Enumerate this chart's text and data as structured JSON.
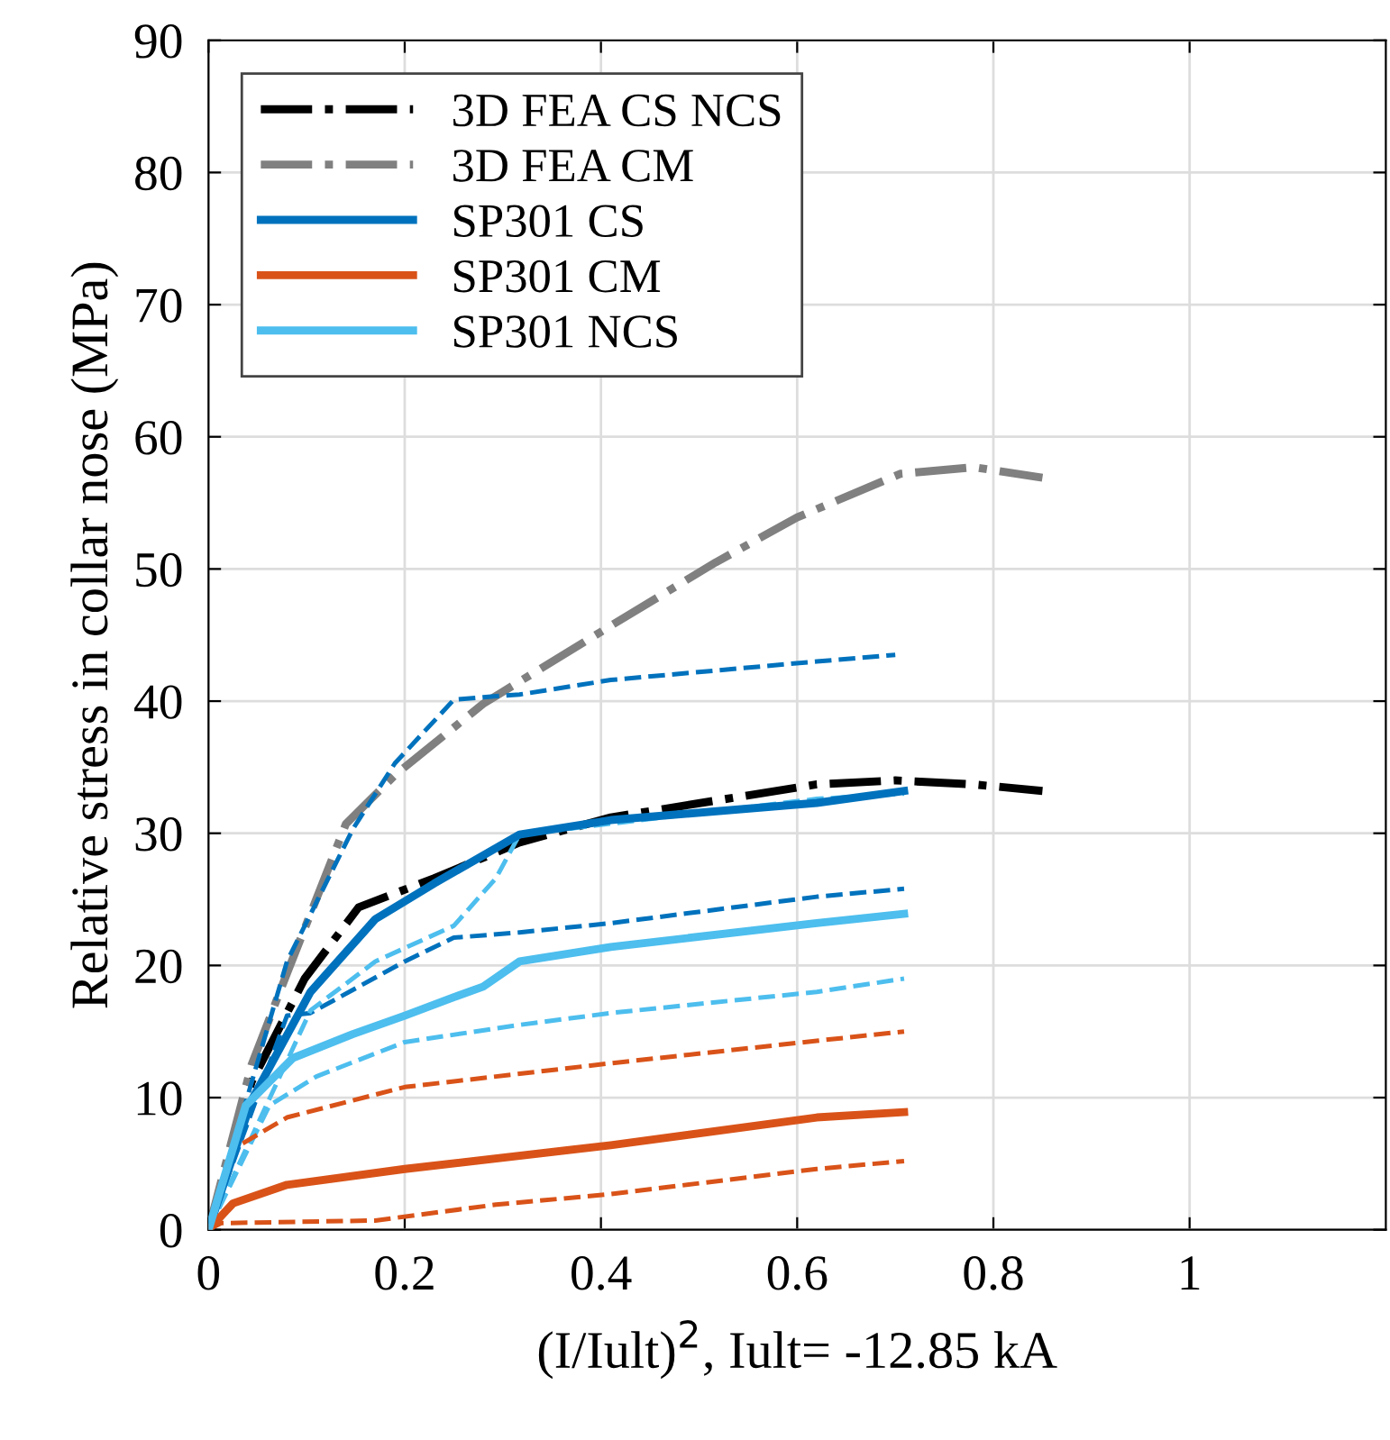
{
  "chart_data": {
    "type": "line",
    "xlabel": "(I/Iult)$^{2}$, Iult= -12.85 kA",
    "ylabel": "Relative stress in collar nose (MPa)",
    "xlim": [
      0,
      1.2
    ],
    "xticks": [
      0,
      0.2,
      0.4,
      0.6,
      0.8,
      1
    ],
    "ylim": [
      0,
      90
    ],
    "yticks": [
      0,
      10,
      20,
      30,
      40,
      50,
      60,
      70,
      80,
      90
    ],
    "grid": true,
    "legend": "top left",
    "series": [
      {
        "name": "3D FEA CS NCS",
        "color": "#000000",
        "line_style": "dashdot",
        "x": [
          0,
          0.044,
          0.098,
          0.153,
          0.23,
          0.317,
          0.41,
          0.62,
          0.7,
          0.78,
          0.85
        ],
        "values": [
          0,
          11.2,
          19,
          24.4,
          26.6,
          29.3,
          31.2,
          33.7,
          34,
          33.7,
          33.2
        ]
      },
      {
        "name": "3D FEA CM",
        "color": "#808080",
        "line_style": "dashdot",
        "x": [
          0,
          0.044,
          0.08,
          0.14,
          0.19,
          0.28,
          0.41,
          0.517,
          0.6,
          0.705,
          0.78,
          0.85
        ],
        "values": [
          0,
          12.5,
          19.4,
          30.7,
          34.4,
          39.8,
          45.7,
          50.5,
          53.9,
          57.2,
          57.7,
          56.9
        ]
      },
      {
        "name": "SP301 CS",
        "color": "#0072bd",
        "line_style": "solid",
        "x": [
          0,
          0.044,
          0.104,
          0.17,
          0.23,
          0.317,
          0.41,
          0.62,
          0.709
        ],
        "values": [
          0,
          9.8,
          18,
          23.5,
          26.2,
          29.9,
          31,
          32.3,
          33.2
        ]
      },
      {
        "name": "SP301 CM",
        "color": "#d95319",
        "line_style": "solid",
        "x": [
          0,
          0.025,
          0.08,
          0.2,
          0.41,
          0.62,
          0.709
        ],
        "values": [
          0,
          2,
          3.4,
          4.6,
          6.4,
          8.5,
          8.9
        ]
      },
      {
        "name": "SP301 NCS",
        "color": "#4dbeee",
        "line_style": "solid",
        "x": [
          0,
          0.038,
          0.086,
          0.147,
          0.2,
          0.25,
          0.28,
          0.317,
          0.41,
          0.62,
          0.709
        ],
        "values": [
          0,
          9.4,
          13,
          14.8,
          16.2,
          17.6,
          18.4,
          20.3,
          21.4,
          23.2,
          23.9
        ]
      },
      {
        "color": "#0072bd",
        "line_style": "dashed",
        "x": [
          0,
          0.08,
          0.147,
          0.19,
          0.25,
          0.28,
          0.317,
          0.41,
          0.62,
          0.7
        ],
        "values": [
          0,
          20.3,
          30.3,
          35.3,
          40.1,
          40.3,
          40.5,
          41.6,
          43,
          43.5
        ]
      },
      {
        "color": "#0072bd",
        "line_style": "dashed",
        "x": [
          0,
          0.08,
          0.104,
          0.2,
          0.25,
          0.317,
          0.41,
          0.62,
          0.709
        ],
        "values": [
          0,
          16.2,
          16.4,
          20.3,
          22.1,
          22.5,
          23.2,
          25.2,
          25.8
        ]
      },
      {
        "color": "#4dbeee",
        "line_style": "dashed",
        "x": [
          0,
          0.104,
          0.17,
          0.25,
          0.293,
          0.317,
          0.62,
          0.709
        ],
        "values": [
          0,
          16.6,
          20.3,
          23,
          26.6,
          29.9,
          32.6,
          33
        ]
      },
      {
        "color": "#4dbeee",
        "line_style": "dashed",
        "x": [
          0,
          0.062,
          0.11,
          0.2,
          0.317,
          0.41,
          0.62,
          0.709
        ],
        "values": [
          0,
          9.4,
          11.6,
          14.2,
          15.5,
          16.4,
          18,
          19
        ]
      },
      {
        "color": "#d95319",
        "line_style": "dashed",
        "x": [
          0,
          0.025,
          0.08,
          0.2,
          0.41,
          0.62,
          0.709
        ],
        "values": [
          0,
          6.1,
          8.5,
          10.8,
          12.6,
          14.3,
          15
        ]
      },
      {
        "color": "#d95319",
        "line_style": "dashed",
        "x": [
          0,
          0.013,
          0.17,
          0.293,
          0.41,
          0.62,
          0.709
        ],
        "values": [
          0,
          0.5,
          0.7,
          1.9,
          2.7,
          4.6,
          5.2
        ]
      }
    ]
  }
}
